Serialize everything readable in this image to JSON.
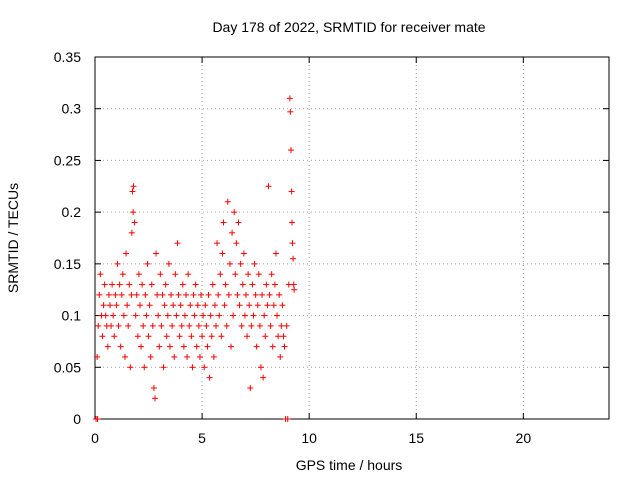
{
  "chart_data": {
    "type": "scatter",
    "title": "Day 178 of 2022, SRMTID for receiver mate",
    "xlabel": "GPS time / hours",
    "ylabel": "SRMTID / TECUs",
    "xlim": [
      0,
      24
    ],
    "ylim": [
      0,
      0.35
    ],
    "xticks": [
      0,
      5,
      10,
      15,
      20
    ],
    "xtick_labels": [
      "0",
      "5",
      "10",
      "15",
      "20"
    ],
    "yticks": [
      0,
      0.05,
      0.1,
      0.15,
      0.2,
      0.25,
      0.3,
      0.35
    ],
    "ytick_labels": [
      "0",
      "0.05",
      "0.1",
      "0.15",
      "0.2",
      "0.25",
      "0.3",
      "0.35"
    ],
    "grid": true,
    "marker": "+",
    "series": [
      {
        "name": "SRMTID",
        "color": "#ff0000",
        "points": [
          [
            0.05,
            0.0
          ],
          [
            0.12,
            0.0
          ],
          [
            0.1,
            0.06
          ],
          [
            0.15,
            0.09
          ],
          [
            0.2,
            0.12
          ],
          [
            0.25,
            0.14
          ],
          [
            0.3,
            0.1
          ],
          [
            0.35,
            0.08
          ],
          [
            0.4,
            0.11
          ],
          [
            0.45,
            0.13
          ],
          [
            0.5,
            0.1
          ],
          [
            0.55,
            0.09
          ],
          [
            0.6,
            0.07
          ],
          [
            0.65,
            0.12
          ],
          [
            0.7,
            0.11
          ],
          [
            0.75,
            0.09
          ],
          [
            0.8,
            0.13
          ],
          [
            0.85,
            0.1
          ],
          [
            0.9,
            0.08
          ],
          [
            0.95,
            0.12
          ],
          [
            1.0,
            0.11
          ],
          [
            1.05,
            0.15
          ],
          [
            1.1,
            0.09
          ],
          [
            1.15,
            0.13
          ],
          [
            1.2,
            0.07
          ],
          [
            1.25,
            0.12
          ],
          [
            1.3,
            0.14
          ],
          [
            1.35,
            0.1
          ],
          [
            1.4,
            0.06
          ],
          [
            1.45,
            0.16
          ],
          [
            1.5,
            0.11
          ],
          [
            1.55,
            0.09
          ],
          [
            1.6,
            0.13
          ],
          [
            1.65,
            0.05
          ],
          [
            1.7,
            0.12
          ],
          [
            1.72,
            0.18
          ],
          [
            1.75,
            0.22
          ],
          [
            1.78,
            0.2
          ],
          [
            1.8,
            0.225
          ],
          [
            1.85,
            0.19
          ],
          [
            1.9,
            0.1
          ],
          [
            1.95,
            0.12
          ],
          [
            2.0,
            0.08
          ],
          [
            2.05,
            0.14
          ],
          [
            2.1,
            0.11
          ],
          [
            2.15,
            0.07
          ],
          [
            2.2,
            0.13
          ],
          [
            2.25,
            0.09
          ],
          [
            2.3,
            0.05
          ],
          [
            2.35,
            0.12
          ],
          [
            2.4,
            0.1
          ],
          [
            2.45,
            0.15
          ],
          [
            2.5,
            0.08
          ],
          [
            2.55,
            0.11
          ],
          [
            2.6,
            0.06
          ],
          [
            2.65,
            0.13
          ],
          [
            2.7,
            0.09
          ],
          [
            2.75,
            0.03
          ],
          [
            2.8,
            0.02
          ],
          [
            2.85,
            0.16
          ],
          [
            2.9,
            0.12
          ],
          [
            2.95,
            0.1
          ],
          [
            3.0,
            0.07
          ],
          [
            3.05,
            0.14
          ],
          [
            3.1,
            0.09
          ],
          [
            3.15,
            0.12
          ],
          [
            3.2,
            0.05
          ],
          [
            3.25,
            0.11
          ],
          [
            3.3,
            0.13
          ],
          [
            3.35,
            0.08
          ],
          [
            3.4,
            0.1
          ],
          [
            3.45,
            0.15
          ],
          [
            3.5,
            0.07
          ],
          [
            3.55,
            0.12
          ],
          [
            3.6,
            0.09
          ],
          [
            3.65,
            0.11
          ],
          [
            3.7,
            0.06
          ],
          [
            3.75,
            0.14
          ],
          [
            3.8,
            0.1
          ],
          [
            3.85,
            0.17
          ],
          [
            3.9,
            0.12
          ],
          [
            3.95,
            0.08
          ],
          [
            4.0,
            0.11
          ],
          [
            4.05,
            0.09
          ],
          [
            4.1,
            0.13
          ],
          [
            4.15,
            0.07
          ],
          [
            4.2,
            0.1
          ],
          [
            4.25,
            0.12
          ],
          [
            4.3,
            0.06
          ],
          [
            4.35,
            0.14
          ],
          [
            4.4,
            0.09
          ],
          [
            4.45,
            0.11
          ],
          [
            4.5,
            0.08
          ],
          [
            4.55,
            0.05
          ],
          [
            4.6,
            0.12
          ],
          [
            4.65,
            0.1
          ],
          [
            4.7,
            0.13
          ],
          [
            4.75,
            0.07
          ],
          [
            4.8,
            0.11
          ],
          [
            4.85,
            0.09
          ],
          [
            4.9,
            0.06
          ],
          [
            4.95,
            0.12
          ],
          [
            5.0,
            0.08
          ],
          [
            5.05,
            0.1
          ],
          [
            5.1,
            0.05
          ],
          [
            5.15,
            0.11
          ],
          [
            5.2,
            0.09
          ],
          [
            5.25,
            0.07
          ],
          [
            5.3,
            0.12
          ],
          [
            5.35,
            0.04
          ],
          [
            5.4,
            0.1
          ],
          [
            5.45,
            0.08
          ],
          [
            5.5,
            0.13
          ],
          [
            5.55,
            0.06
          ],
          [
            5.6,
            0.11
          ],
          [
            5.65,
            0.09
          ],
          [
            5.7,
            0.17
          ],
          [
            5.75,
            0.12
          ],
          [
            5.8,
            0.1
          ],
          [
            5.85,
            0.14
          ],
          [
            5.9,
            0.08
          ],
          [
            5.95,
            0.16
          ],
          [
            6.0,
            0.19
          ],
          [
            6.05,
            0.11
          ],
          [
            6.1,
            0.13
          ],
          [
            6.15,
            0.09
          ],
          [
            6.2,
            0.21
          ],
          [
            6.25,
            0.12
          ],
          [
            6.3,
            0.15
          ],
          [
            6.35,
            0.07
          ],
          [
            6.4,
            0.18
          ],
          [
            6.45,
            0.1
          ],
          [
            6.5,
            0.2
          ],
          [
            6.55,
            0.14
          ],
          [
            6.6,
            0.17
          ],
          [
            6.65,
            0.12
          ],
          [
            6.7,
            0.19
          ],
          [
            6.75,
            0.11
          ],
          [
            6.8,
            0.15
          ],
          [
            6.85,
            0.09
          ],
          [
            6.9,
            0.13
          ],
          [
            6.95,
            0.16
          ],
          [
            7.0,
            0.1
          ],
          [
            7.05,
            0.12
          ],
          [
            7.1,
            0.08
          ],
          [
            7.15,
            0.14
          ],
          [
            7.2,
            0.11
          ],
          [
            7.25,
            0.03
          ],
          [
            7.3,
            0.09
          ],
          [
            7.35,
            0.13
          ],
          [
            7.4,
            0.1
          ],
          [
            7.45,
            0.15
          ],
          [
            7.5,
            0.12
          ],
          [
            7.55,
            0.07
          ],
          [
            7.6,
            0.11
          ],
          [
            7.65,
            0.14
          ],
          [
            7.7,
            0.09
          ],
          [
            7.75,
            0.05
          ],
          [
            7.8,
            0.12
          ],
          [
            7.85,
            0.04
          ],
          [
            7.9,
            0.1
          ],
          [
            7.95,
            0.08
          ],
          [
            8.0,
            0.13
          ],
          [
            8.05,
            0.11
          ],
          [
            8.1,
            0.225
          ],
          [
            8.15,
            0.12
          ],
          [
            8.2,
            0.09
          ],
          [
            8.25,
            0.14
          ],
          [
            8.3,
            0.07
          ],
          [
            8.35,
            0.11
          ],
          [
            8.4,
            0.13
          ],
          [
            8.45,
            0.16
          ],
          [
            8.5,
            0.1
          ],
          [
            8.55,
            0.08
          ],
          [
            8.6,
            0.12
          ],
          [
            8.65,
            0.06
          ],
          [
            8.7,
            0.09
          ],
          [
            8.75,
            0.11
          ],
          [
            8.8,
            0.08
          ],
          [
            8.85,
            0.07
          ],
          [
            8.9,
            0.0
          ],
          [
            8.95,
            0.09
          ],
          [
            9.0,
            0.0
          ],
          [
            9.05,
            0.13
          ],
          [
            9.1,
            0.31
          ],
          [
            9.12,
            0.297
          ],
          [
            9.15,
            0.26
          ],
          [
            9.18,
            0.22
          ],
          [
            9.2,
            0.19
          ],
          [
            9.22,
            0.17
          ],
          [
            9.25,
            0.155
          ],
          [
            9.28,
            0.13
          ],
          [
            9.3,
            0.125
          ]
        ]
      }
    ]
  }
}
